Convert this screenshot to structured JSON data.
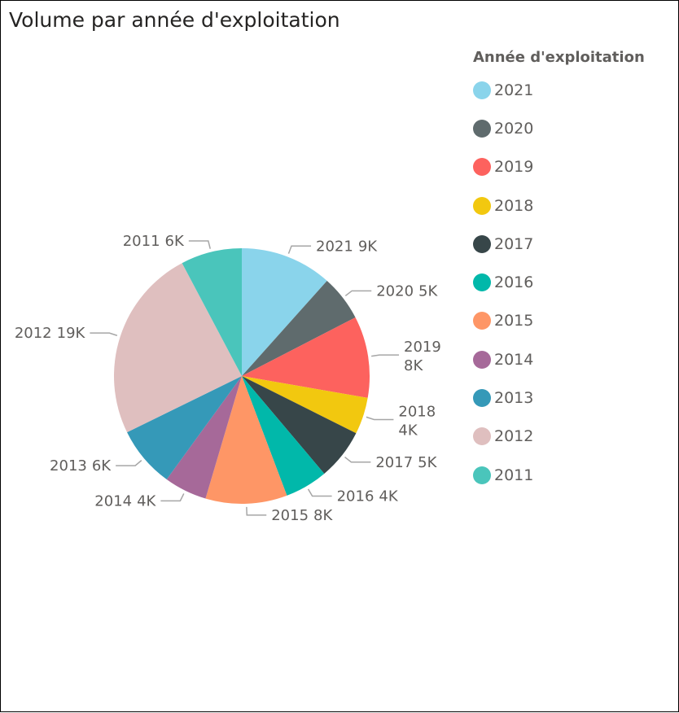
{
  "title": "Volume par année d'exploitation",
  "legend": {
    "title": "Année d'exploitation",
    "items": [
      {
        "label": "2021",
        "color": "#8ad4eb"
      },
      {
        "label": "2020",
        "color": "#5f6b6d"
      },
      {
        "label": "2019",
        "color": "#fd625e"
      },
      {
        "label": "2018",
        "color": "#f2c80f"
      },
      {
        "label": "2017",
        "color": "#374649"
      },
      {
        "label": "2016",
        "color": "#01b8aa"
      },
      {
        "label": "2015",
        "color": "#fe9666"
      },
      {
        "label": "2014",
        "color": "#a66999"
      },
      {
        "label": "2013",
        "color": "#3599b8"
      },
      {
        "label": "2012",
        "color": "#dfbfbf"
      },
      {
        "label": "2011",
        "color": "#4ac5bb"
      }
    ]
  },
  "chart_data": {
    "type": "pie",
    "title": "Volume par année d'exploitation",
    "legend_title": "Année d'exploitation",
    "legend_position": "right",
    "slices": [
      {
        "label": "2021",
        "value": 9,
        "display": "9K",
        "color": "#8ad4eb"
      },
      {
        "label": "2020",
        "value": 4.5,
        "display": "5K",
        "color": "#5f6b6d"
      },
      {
        "label": "2019",
        "value": 8,
        "display": "8K",
        "color": "#fd625e"
      },
      {
        "label": "2018",
        "value": 3.6,
        "display": "4K",
        "color": "#f2c80f"
      },
      {
        "label": "2017",
        "value": 5,
        "display": "5K",
        "color": "#374649"
      },
      {
        "label": "2016",
        "value": 4.2,
        "display": "4K",
        "color": "#01b8aa"
      },
      {
        "label": "2015",
        "value": 8,
        "display": "8K",
        "color": "#fe9666"
      },
      {
        "label": "2014",
        "value": 4.2,
        "display": "4K",
        "color": "#a66999"
      },
      {
        "label": "2013",
        "value": 6,
        "display": "6K",
        "color": "#3599b8"
      },
      {
        "label": "2012",
        "value": 19,
        "display": "19K",
        "color": "#dfbfbf"
      },
      {
        "label": "2011",
        "value": 6,
        "display": "6K",
        "color": "#4ac5bb"
      }
    ]
  }
}
